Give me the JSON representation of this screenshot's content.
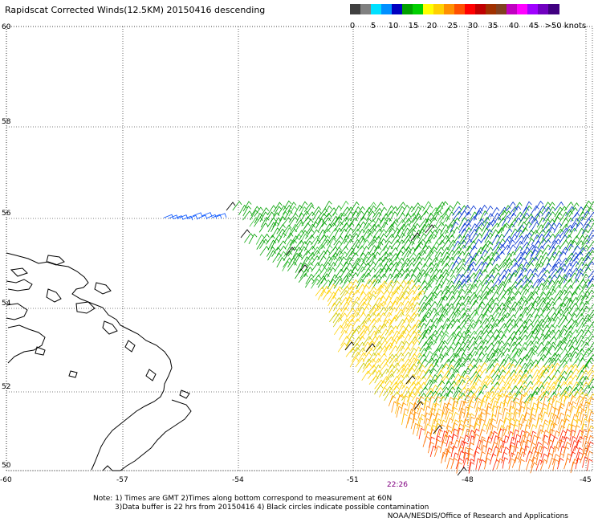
{
  "title": "Rapidscat Corrected Winds(12.5KM) 20150416 descending",
  "legend": {
    "colors": [
      "#404040",
      "#808080",
      "#00e0ff",
      "#0090ff",
      "#0000c0",
      "#00a000",
      "#00d000",
      "#ffff00",
      "#ffd000",
      "#ff9000",
      "#ff5000",
      "#ff0000",
      "#c00000",
      "#a03000",
      "#804020",
      "#c000c0",
      "#ff00ff",
      "#a000ff",
      "#7000c0",
      "#400080"
    ],
    "labels": [
      "0",
      "5",
      "10",
      "15",
      "20",
      "25",
      "30",
      "35",
      "40",
      "45",
      ">50 knots"
    ]
  },
  "axes": {
    "lat_labels": [
      "60",
      "58",
      "56",
      "54",
      "52",
      "50"
    ],
    "lon_labels": [
      "-60",
      "-57",
      "-54",
      "-51",
      "-48",
      "-45"
    ]
  },
  "time_label": "22:26",
  "notes": [
    "Note: 1) Times are GMT 2)Times along bottom correspond to measurement at 60N",
    "3)Data buffer is 22 hrs from 20150416 4) Black circles indicate possible contamination"
  ],
  "credit": "NOAA/NESDIS/Office of Research and Applications"
}
